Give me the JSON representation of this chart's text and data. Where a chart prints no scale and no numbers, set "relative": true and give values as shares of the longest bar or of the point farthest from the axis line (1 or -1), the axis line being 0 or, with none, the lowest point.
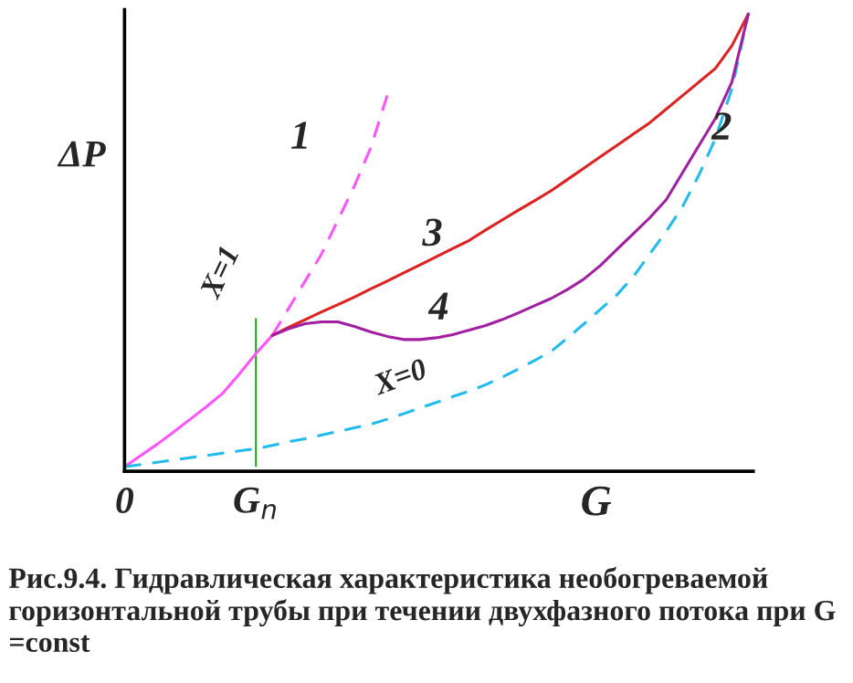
{
  "chart_data": {
    "type": "line",
    "relative": true,
    "xlabel": "G",
    "ylabel": "ΔP",
    "categories": [
      "0",
      null,
      null,
      null,
      null,
      null,
      null,
      null,
      "G$_{n}$",
      null,
      null,
      null,
      null,
      null,
      null,
      null,
      null,
      null,
      null,
      null,
      null,
      null,
      null,
      null,
      null,
      null,
      null,
      null,
      null,
      null,
      null,
      null,
      null,
      null,
      null,
      null,
      null,
      null,
      null
    ],
    "grid": false,
    "legend": false,
    "marker": "none",
    "series": [
      {
        "color": "#ff55ff",
        "line_style": "solid",
        "values": [
          0,
          0.025,
          0.05,
          0.077,
          0.105,
          0.133,
          0.163,
          0.205,
          0.25,
          0.29,
          null,
          null,
          null,
          null,
          null,
          null,
          null,
          null,
          null,
          null,
          null,
          null,
          null,
          null,
          null,
          null,
          null,
          null,
          null,
          null,
          null,
          null,
          null,
          null,
          null,
          null,
          null,
          null,
          null
        ]
      },
      {
        "color": "#ff55ff",
        "line_style": "dashed",
        "values": [
          null,
          null,
          null,
          null,
          null,
          null,
          null,
          null,
          null,
          0.29,
          0.35,
          0.41,
          0.47,
          0.545,
          0.62,
          0.705,
          0.82,
          null,
          null,
          null,
          null,
          null,
          null,
          null,
          null,
          null,
          null,
          null,
          null,
          null,
          null,
          null,
          null,
          null,
          null,
          null,
          null,
          null,
          null
        ]
      },
      {
        "color": "#22bbee",
        "line_style": "dashed",
        "values": [
          0,
          0.005,
          0.01,
          0.015,
          0.02,
          0.025,
          0.03,
          0.035,
          0.04,
          0.047,
          0.055,
          0.062,
          0.07,
          0.078,
          0.086,
          0.094,
          0.105,
          0.117,
          0.13,
          0.142,
          0.155,
          0.167,
          0.181,
          0.198,
          0.216,
          0.235,
          0.255,
          0.285,
          0.316,
          0.348,
          0.38,
          0.42,
          0.47,
          0.52,
          0.575,
          0.645,
          0.725,
          0.835,
          1
        ]
      },
      {
        "color": "#dd2222",
        "line_style": "solid",
        "values": [
          null,
          null,
          null,
          null,
          null,
          null,
          null,
          null,
          null,
          0.29,
          0.308,
          0.325,
          0.342,
          0.358,
          0.375,
          0.393,
          0.41,
          0.428,
          0.446,
          0.464,
          0.482,
          0.5,
          0.523,
          0.545,
          0.567,
          0.588,
          0.61,
          0.635,
          0.66,
          0.685,
          0.71,
          0.735,
          0.76,
          0.79,
          0.82,
          0.85,
          0.88,
          0.93,
          1
        ]
      },
      {
        "color": "#a020a0",
        "line_style": "solid",
        "values": [
          null,
          null,
          null,
          null,
          null,
          null,
          null,
          null,
          null,
          0.29,
          0.305,
          0.316,
          0.32,
          0.32,
          0.31,
          0.298,
          0.288,
          0.281,
          0.281,
          0.285,
          0.292,
          0.302,
          0.312,
          0.325,
          0.34,
          0.356,
          0.372,
          0.392,
          0.415,
          0.445,
          0.48,
          0.515,
          0.55,
          0.59,
          0.65,
          0.71,
          0.77,
          0.85,
          1
        ]
      },
      {
        "type": "bar",
        "color": "#00aa00",
        "values": [
          null,
          null,
          null,
          null,
          null,
          null,
          null,
          null,
          0.328,
          null,
          null,
          null,
          null,
          null,
          null,
          null,
          null,
          null,
          null,
          null,
          null,
          null,
          null,
          null,
          null,
          null,
          null,
          null,
          null,
          null,
          null,
          null,
          null,
          null,
          null,
          null,
          null,
          null,
          null
        ]
      }
    ],
    "annotations": [
      "1",
      "2",
      "3",
      "4",
      "X=1",
      "X=0",
      "Рис.9.4. Гидравлическая характеристика необогреваемой горизонтальной трубы при течении двухфазного потока при G =const"
    ]
  }
}
